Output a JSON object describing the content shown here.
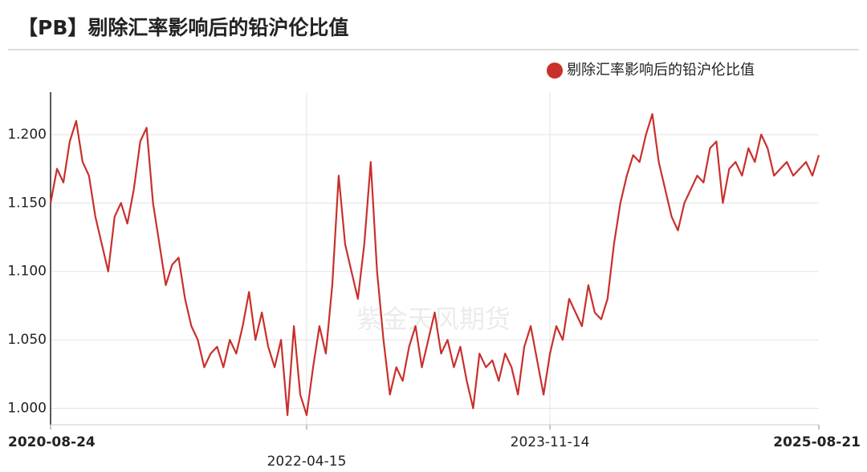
{
  "chart_data": {
    "type": "line",
    "title": "【PB】剔除汇率影响后的铅沪伦比值",
    "watermark": "紫金天风期货",
    "legend": "top-right",
    "grid": true,
    "categories": [
      "2020-08-24",
      null,
      null,
      null,
      null,
      null,
      null,
      null,
      null,
      null,
      null,
      null,
      null,
      null,
      null,
      null,
      null,
      null,
      null,
      null,
      null,
      null,
      null,
      null,
      null,
      null,
      null,
      null,
      null,
      null,
      null,
      null,
      null,
      null,
      null,
      null,
      null,
      null,
      null,
      null,
      "2022-04-15",
      null,
      null,
      null,
      null,
      null,
      null,
      null,
      null,
      null,
      null,
      null,
      null,
      null,
      null,
      null,
      null,
      null,
      null,
      null,
      null,
      null,
      null,
      null,
      null,
      null,
      null,
      null,
      null,
      null,
      null,
      null,
      null,
      null,
      null,
      null,
      null,
      null,
      "2023-11-14",
      null,
      null,
      null,
      null,
      null,
      null,
      null,
      null,
      null,
      null,
      null,
      null,
      null,
      null,
      null,
      null,
      null,
      null,
      null,
      null,
      null,
      null,
      null,
      null,
      null,
      null,
      null,
      null,
      null,
      null,
      null,
      null,
      null,
      null,
      null,
      null,
      null,
      null,
      null,
      null,
      null,
      "2025-08-21"
    ],
    "series": [
      {
        "name": "剔除汇率影响后的铅沪伦比值",
        "color": "#c9302c",
        "values": [
          1.15,
          1.175,
          1.165,
          1.195,
          1.21,
          1.18,
          1.17,
          1.14,
          1.12,
          1.1,
          1.14,
          1.15,
          1.135,
          1.16,
          1.195,
          1.205,
          1.15,
          1.12,
          1.09,
          1.105,
          1.11,
          1.08,
          1.06,
          1.05,
          1.03,
          1.04,
          1.045,
          1.03,
          1.05,
          1.04,
          1.06,
          1.085,
          1.05,
          1.07,
          1.045,
          1.03,
          1.05,
          0.995,
          1.06,
          1.01,
          0.995,
          1.03,
          1.06,
          1.04,
          1.09,
          1.17,
          1.12,
          1.1,
          1.08,
          1.12,
          1.18,
          1.1,
          1.05,
          1.01,
          1.03,
          1.02,
          1.045,
          1.06,
          1.03,
          1.05,
          1.07,
          1.04,
          1.05,
          1.03,
          1.045,
          1.02,
          1.0,
          1.04,
          1.03,
          1.035,
          1.02,
          1.04,
          1.03,
          1.01,
          1.045,
          1.06,
          1.035,
          1.01,
          1.04,
          1.06,
          1.05,
          1.08,
          1.07,
          1.06,
          1.09,
          1.07,
          1.065,
          1.08,
          1.12,
          1.15,
          1.17,
          1.185,
          1.18,
          1.2,
          1.215,
          1.18,
          1.16,
          1.14,
          1.13,
          1.15,
          1.16,
          1.17,
          1.165,
          1.19,
          1.195,
          1.15,
          1.175,
          1.18,
          1.17,
          1.19,
          1.18,
          1.2,
          1.19,
          1.17,
          1.175,
          1.18,
          1.17,
          1.175,
          1.18,
          1.17,
          1.185
        ]
      }
    ],
    "ylim": [
      0.988,
      1.231
    ],
    "yticks": [
      {
        "value": 1.0,
        "label": "1.000"
      },
      {
        "value": 1.05,
        "label": "1.050"
      },
      {
        "value": 1.1,
        "label": "1.100"
      },
      {
        "value": 1.15,
        "label": "1.150"
      },
      {
        "value": 1.2,
        "label": "1.200"
      }
    ]
  }
}
